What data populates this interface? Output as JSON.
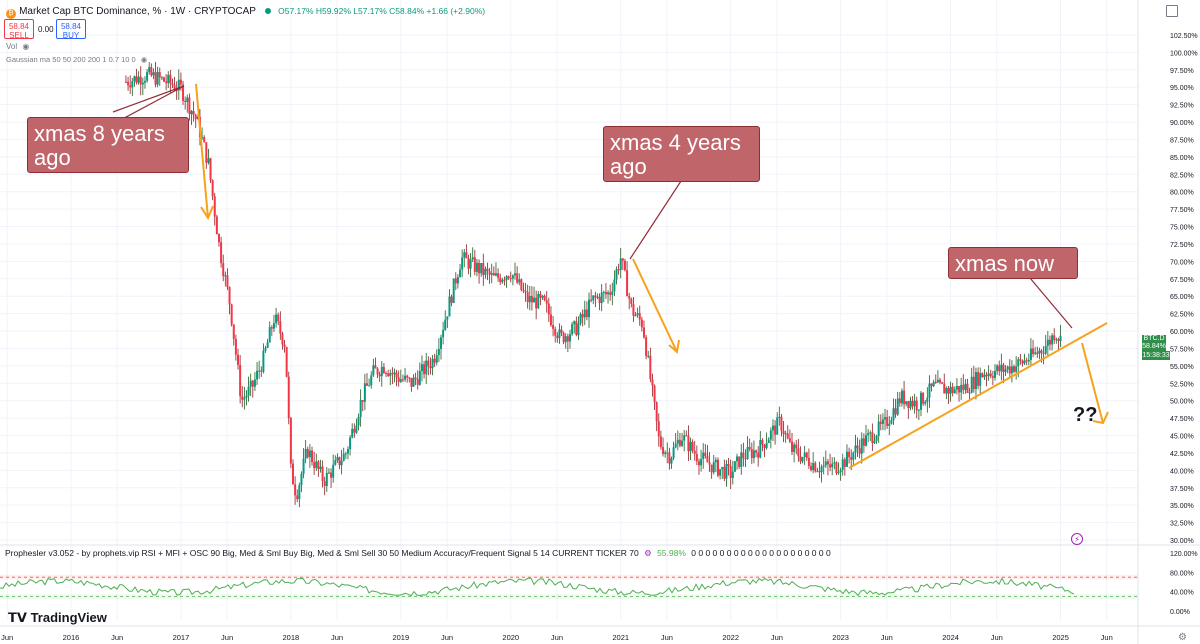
{
  "header": {
    "symbol_title": "Market Cap BTC Dominance, % · 1W · CRYPTOCAP",
    "ohlc": "O57.17% H59.92% L57.17% C58.84% +1.66 (+2.90%)",
    "sell_price": "58.84",
    "sell_label": "SELL",
    "spread": "0.00",
    "buy_price": "58.84",
    "buy_label": "BUY",
    "vol_label": "Vol",
    "ma_label": "Gaussian ma 50 50 200 200 1 0.7 10 0"
  },
  "price_tag": {
    "symbol": "BTC.D",
    "price": "58.84%",
    "countdown": "15:38:33"
  },
  "indicator": {
    "title": "Prophesler v3.052 - by prophets.vip RSI + MFI + OSC 90 Big, Med & Sml Buy Big, Med & Sml Sell 30 50 Medium Accuracy/Frequent Signal 5 14 CURRENT TICKER 70",
    "value": "55.98%",
    "zeros": "0 0 0 0 0 0 0 0 0 0 0 0 0 0 0 0 0 0 0 0",
    "y_ticks": [
      "120.00%",
      "80.00%",
      "40.00%",
      "0.00%"
    ],
    "ref_levels": [
      70,
      30
    ]
  },
  "branding": {
    "logo_text": "TradingView"
  },
  "annotations": {
    "callouts": [
      "xmas 8 years ago",
      "xmas 4 years ago",
      "xmas now"
    ],
    "question": "??"
  },
  "colors": {
    "up": "#089981",
    "down": "#f23645",
    "candle_main": "#2e7d32",
    "callout_fill": "#c0666b",
    "orange_line": "#f7a21b",
    "osc_line": "#4caf50"
  },
  "chart_data": {
    "type": "candlestick",
    "title": "Market Cap BTC Dominance, % · 1W · CRYPTOCAP",
    "ylabel": "",
    "ylim": [
      30.0,
      102.5
    ],
    "y_ticks": [
      "102.50%",
      "100.00%",
      "97.50%",
      "95.00%",
      "92.50%",
      "90.00%",
      "87.50%",
      "85.00%",
      "82.50%",
      "80.00%",
      "77.50%",
      "75.00%",
      "72.50%",
      "70.00%",
      "67.50%",
      "65.00%",
      "62.50%",
      "60.00%",
      "57.50%",
      "55.00%",
      "52.50%",
      "50.00%",
      "47.50%",
      "45.00%",
      "42.50%",
      "40.00%",
      "37.50%",
      "35.00%",
      "32.50%",
      "30.00%"
    ],
    "x_ticks": [
      "Jun",
      "2016",
      "Jun",
      "2017",
      "Jun",
      "2018",
      "Jun",
      "2019",
      "Jun",
      "2020",
      "Jun",
      "2021",
      "Jun",
      "2022",
      "Jun",
      "2023",
      "Jun",
      "2024",
      "Jun",
      "2025",
      "Jun"
    ],
    "x_tick_dates": [
      2015.42,
      2016.0,
      2016.42,
      2017.0,
      2017.42,
      2018.0,
      2018.42,
      2019.0,
      2019.42,
      2020.0,
      2020.42,
      2021.0,
      2021.42,
      2022.0,
      2022.42,
      2023.0,
      2023.42,
      2024.0,
      2024.42,
      2025.0,
      2025.42
    ],
    "xlim": [
      2015.4,
      2025.75
    ],
    "series": [
      {
        "points": [
          [
            2016.5,
            95.8
          ],
          [
            2016.7,
            96.8
          ],
          [
            2016.9,
            95.6
          ],
          [
            2017.0,
            94.8
          ],
          [
            2017.15,
            90.0
          ],
          [
            2017.25,
            84.0
          ],
          [
            2017.35,
            72.0
          ],
          [
            2017.45,
            63.5
          ],
          [
            2017.55,
            50.0
          ],
          [
            2017.65,
            52.0
          ],
          [
            2017.75,
            56.0
          ],
          [
            2017.85,
            62.0
          ],
          [
            2017.95,
            58.0
          ],
          [
            2018.0,
            40.0
          ],
          [
            2018.05,
            36.5
          ],
          [
            2018.15,
            43.0
          ],
          [
            2018.3,
            38.5
          ],
          [
            2018.5,
            42.5
          ],
          [
            2018.65,
            50.5
          ],
          [
            2018.75,
            54.0
          ],
          [
            2018.85,
            55.0
          ],
          [
            2018.95,
            53.5
          ],
          [
            2019.1,
            52.5
          ],
          [
            2019.3,
            56.0
          ],
          [
            2019.45,
            64.5
          ],
          [
            2019.55,
            70.5
          ],
          [
            2019.7,
            69.0
          ],
          [
            2019.85,
            67.5
          ],
          [
            2020.0,
            68.5
          ],
          [
            2020.15,
            64.5
          ],
          [
            2020.3,
            64.0
          ],
          [
            2020.45,
            59.0
          ],
          [
            2020.6,
            60.5
          ],
          [
            2020.75,
            64.5
          ],
          [
            2020.9,
            65.5
          ],
          [
            2021.0,
            70.5
          ],
          [
            2021.1,
            63.0
          ],
          [
            2021.2,
            61.0
          ],
          [
            2021.35,
            44.0
          ],
          [
            2021.45,
            42.0
          ],
          [
            2021.55,
            45.0
          ],
          [
            2021.7,
            42.0
          ],
          [
            2021.85,
            40.5
          ],
          [
            2022.0,
            39.5
          ],
          [
            2022.1,
            42.0
          ],
          [
            2022.25,
            43.0
          ],
          [
            2022.45,
            47.0
          ],
          [
            2022.55,
            43.0
          ],
          [
            2022.65,
            42.0
          ],
          [
            2022.8,
            40.5
          ],
          [
            2022.95,
            40.5
          ],
          [
            2023.05,
            41.5
          ],
          [
            2023.2,
            44.0
          ],
          [
            2023.4,
            46.5
          ],
          [
            2023.55,
            50.5
          ],
          [
            2023.7,
            49.5
          ],
          [
            2023.85,
            52.0
          ],
          [
            2024.0,
            51.5
          ],
          [
            2024.15,
            52.0
          ],
          [
            2024.3,
            54.0
          ],
          [
            2024.5,
            54.5
          ],
          [
            2024.65,
            55.5
          ],
          [
            2024.8,
            57.0
          ],
          [
            2024.9,
            58.5
          ],
          [
            2024.95,
            59.9
          ],
          [
            2025.0,
            58.8
          ]
        ]
      }
    ],
    "last_price": "58.84%"
  }
}
